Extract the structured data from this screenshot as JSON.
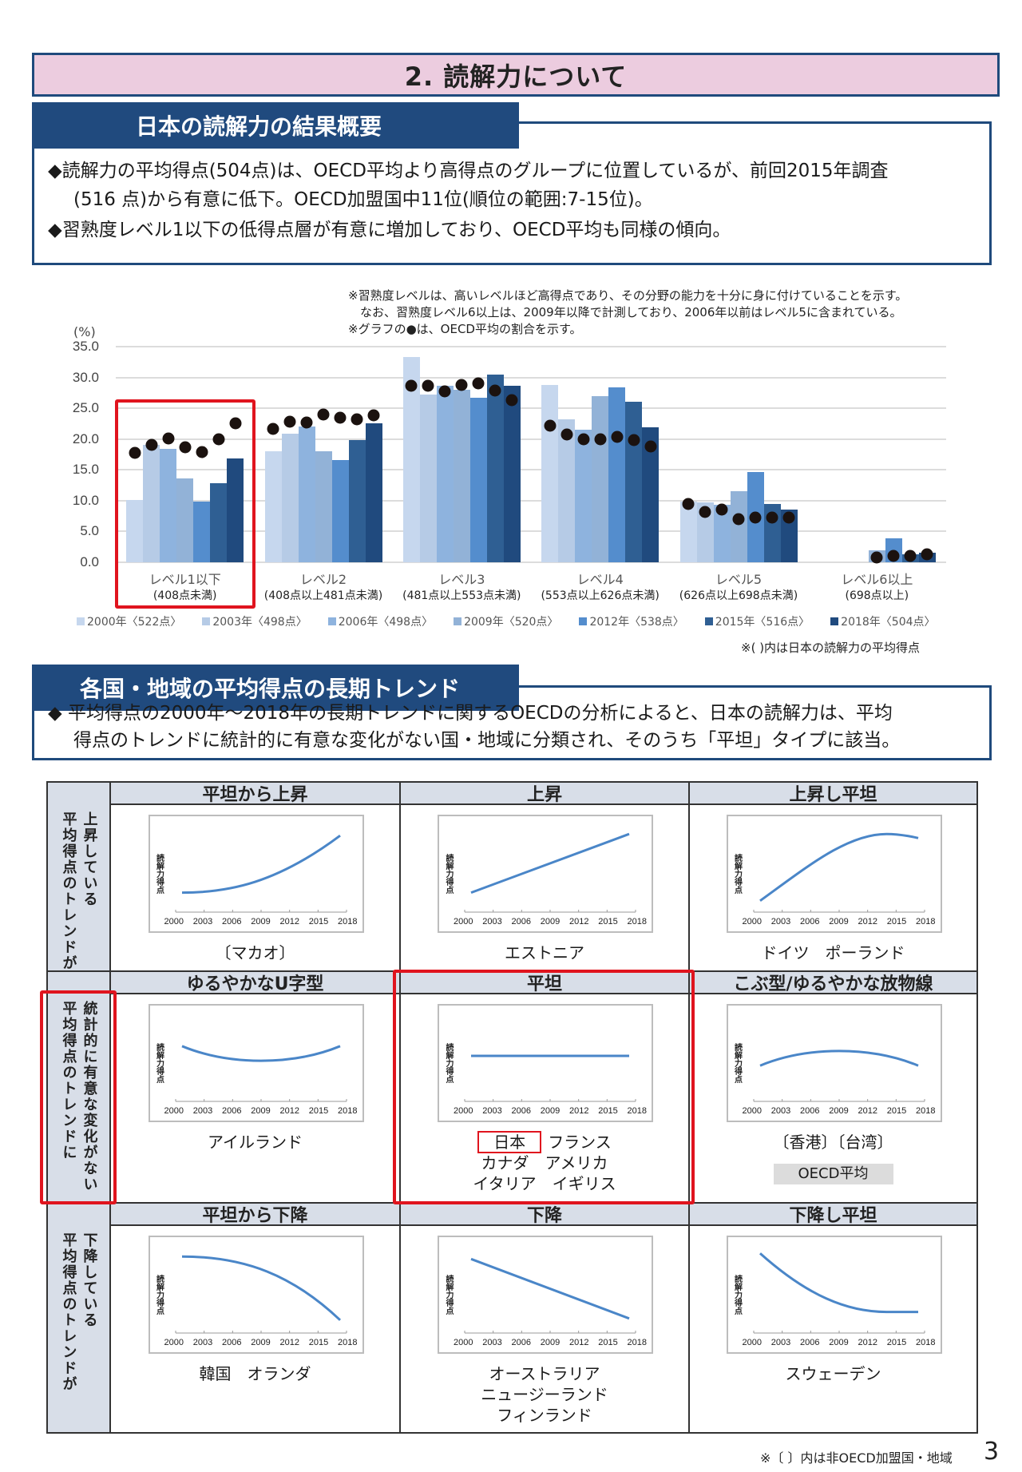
{
  "title": "2. 読解力について",
  "section1": {
    "header": "日本の読解力の結果概要",
    "bullets": [
      {
        "line1": "◆読解力の平均得点(504点)は、OECD平均より高得点のグループに位置しているが、前回2015年調査",
        "line2": "(516 点)から有意に低下。OECD加盟国中11位(順位の範囲:7-15位)。"
      },
      {
        "line1": "◆習熟度レベル1以下の低得点層が有意に増加しており、OECD平均も同様の傾向。",
        "line2": ""
      }
    ]
  },
  "chart_notes": [
    "※習熟度レベルは、高いレベルほど高得点であり、その分野の能力を十分に身に付けていることを示す。",
    "　なお、習熟度レベル6以上は、2009年以降で計測しており、2006年以前はレベル5に含まれている。",
    "※グラフの●は、OECD平均の割合を示す。"
  ],
  "chart_footnote": "※(  )内は日本の読解力の平均得点",
  "chart_data": {
    "type": "bar",
    "title": "",
    "ylabel": "(%)",
    "xlabel": "",
    "ylim": [
      0,
      35
    ],
    "yticks": [
      "35.0",
      "30.0",
      "25.0",
      "20.0",
      "15.0",
      "10.0",
      "5.0",
      "0.0"
    ],
    "grid": true,
    "legend_position": "bottom",
    "categories": [
      {
        "label": "レベル1以下",
        "sub": "(408点未満)"
      },
      {
        "label": "レベル2",
        "sub": "(408点以上481点未満)"
      },
      {
        "label": "レベル3",
        "sub": "(481点以上553点未満)"
      },
      {
        "label": "レベル4",
        "sub": "(553点以上626点未満)"
      },
      {
        "label": "レベル5",
        "sub": "(626点以上698点未満)"
      },
      {
        "label": "レベル6以上",
        "sub": "(698点以上)"
      }
    ],
    "series": [
      {
        "name": "2000年〈522点〉",
        "color": "#c6d7ee",
        "values": [
          10.1,
          18.0,
          33.3,
          28.8,
          9.9,
          null
        ]
      },
      {
        "name": "2003年〈498点〉",
        "color": "#b6cbe6",
        "values": [
          19.0,
          20.9,
          27.2,
          23.2,
          9.7,
          null
        ]
      },
      {
        "name": "2006年〈498点〉",
        "color": "#8eb3de",
        "values": [
          18.4,
          22.0,
          28.6,
          21.5,
          9.4,
          null
        ]
      },
      {
        "name": "2009年〈520点〉",
        "color": "#92b2d7",
        "values": [
          13.6,
          18.0,
          28.0,
          27.0,
          11.5,
          1.9
        ]
      },
      {
        "name": "2012年〈538点〉",
        "color": "#548dcd",
        "values": [
          9.8,
          16.6,
          26.7,
          28.4,
          14.6,
          3.9
        ]
      },
      {
        "name": "2015年〈516点〉",
        "color": "#2f5f93",
        "values": [
          12.9,
          19.8,
          30.5,
          26.0,
          9.5,
          1.3
        ]
      },
      {
        "name": "2018年〈504点〉",
        "color": "#204a7e",
        "values": [
          16.8,
          22.5,
          28.6,
          21.9,
          8.6,
          1.6
        ]
      }
    ],
    "oecd_average": {
      "marker": "●",
      "values": [
        [
          17.8,
          19.0,
          20.1,
          18.7,
          17.9,
          20.0,
          22.6
        ],
        [
          21.7,
          22.8,
          22.7,
          24.0,
          23.5,
          23.2,
          23.8
        ],
        [
          28.7,
          28.7,
          27.8,
          28.8,
          29.0,
          27.9,
          26.3
        ],
        [
          22.2,
          20.7,
          20.0,
          20.0,
          20.3,
          19.8,
          18.8
        ],
        [
          9.5,
          8.2,
          8.6,
          7.0,
          7.3,
          7.2,
          7.3
        ],
        [
          null,
          null,
          null,
          0.8,
          1.1,
          1.1,
          1.3
        ]
      ]
    }
  },
  "section2": {
    "header": "各国・地域の平均得点の長期トレンド",
    "bullet_line1": "◆ 平均得点の2000年～2018年の長期トレンドに関するOECDの分析によると、日本の読解力は、平均",
    "bullet_line2": "得点のトレンドに統計的に有意な変化がない国・地域に分類され、そのうち「平坦」タイプに該当。"
  },
  "trend_table": {
    "row_headers": [
      {
        "outer": "上昇している",
        "inner": "平均得点のトレンドが"
      },
      {
        "outer": "統計的に有意な変化がない",
        "inner": "平均得点のトレンドに"
      },
      {
        "outer": "下降している",
        "inner": "平均得点のトレンドが"
      }
    ],
    "mini_chart": {
      "ylabel": "読解力得点",
      "xticks": [
        "2000",
        "2003",
        "2006",
        "2009",
        "2012",
        "2015",
        "2018"
      ]
    },
    "cells": [
      {
        "title": "平坦から上昇",
        "shape": "flat-rise",
        "countries": [
          "〔マカオ〕"
        ]
      },
      {
        "title": "上昇",
        "shape": "rise",
        "countries": [
          "エストニア"
        ]
      },
      {
        "title": "上昇し平坦",
        "shape": "rise-flat",
        "countries": [
          "ドイツ　ポーランド"
        ]
      },
      {
        "title": "ゆるやかなU字型",
        "shape": "u",
        "countries": [
          "アイルランド"
        ]
      },
      {
        "title": "平坦",
        "shape": "flat",
        "highlight": "日本",
        "countries": [
          "フランス",
          "カナダ　アメリカ",
          "イタリア　イギリス"
        ]
      },
      {
        "title": "こぶ型/ゆるやかな放物線",
        "shape": "hump",
        "countries": [
          "〔香港〕〔台湾〕"
        ],
        "badge": "OECD平均"
      },
      {
        "title": "平坦から下降",
        "shape": "flat-fall",
        "countries": [
          "韓国　オランダ"
        ]
      },
      {
        "title": "下降",
        "shape": "fall",
        "countries": [
          "オーストラリア",
          "ニュージーランド",
          "フィンランド"
        ]
      },
      {
        "title": "下降し平坦",
        "shape": "fall-flat",
        "countries": [
          "スウェーデン"
        ]
      }
    ]
  },
  "footer": {
    "note": "※〔  〕内は非OECD加盟国・地域",
    "page_number": "3"
  }
}
